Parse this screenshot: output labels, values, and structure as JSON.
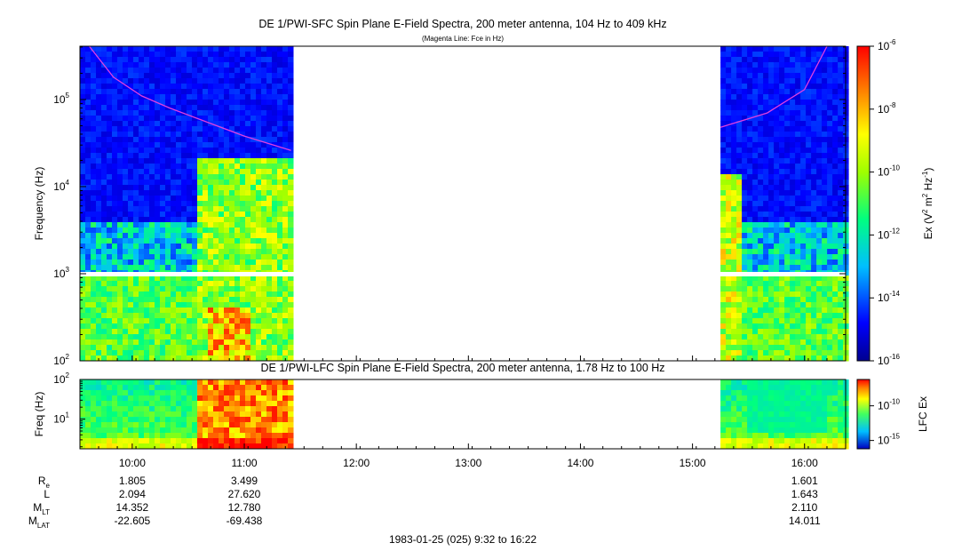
{
  "chart_data": [
    {
      "type": "heatmap",
      "title": "DE 1/PWI-SFC  Spin Plane E-Field Spectra, 200 meter antenna, 104 Hz to 409 kHz",
      "subtitle": "(Magenta Line: Fce in Hz)",
      "ylabel": "Frequency (Hz)",
      "yscale": "log",
      "ylim": [
        100,
        409000
      ],
      "yticks": [
        {
          "value": 100,
          "base": "10",
          "exp": "2"
        },
        {
          "value": 1000,
          "base": "10",
          "exp": "3"
        },
        {
          "value": 10000,
          "base": "10",
          "exp": "4"
        },
        {
          "value": 100000,
          "base": "10",
          "exp": "5"
        }
      ],
      "xlim": [
        "09:32",
        "16:22"
      ],
      "data_intervals": [
        [
          "09:32",
          "11:26"
        ],
        [
          "15:15",
          "16:22"
        ]
      ],
      "colorbar": {
        "label_prefix": "Ex (V",
        "label_sup1": "2",
        "label_mid": " m",
        "label_sup2": "2",
        "label_mid2": " Hz",
        "label_sup3": "-1",
        "label_suffix": ")",
        "scale": "log",
        "range": [
          1e-16,
          1e-06
        ],
        "ticks": [
          {
            "value": 1e-06,
            "base": "10",
            "exp": "-6"
          },
          {
            "value": 1e-08,
            "base": "10",
            "exp": "-8"
          },
          {
            "value": 1e-10,
            "base": "10",
            "exp": "-10"
          },
          {
            "value": 1e-12,
            "base": "10",
            "exp": "-12"
          },
          {
            "value": 1e-14,
            "base": "10",
            "exp": "-14"
          },
          {
            "value": 1e-16,
            "base": "10",
            "exp": "-16"
          }
        ]
      },
      "fce_line": {
        "color": "#e040e0",
        "points": [
          {
            "t": "09:37",
            "f": 409000
          },
          {
            "t": "09:50",
            "f": 180000
          },
          {
            "t": "10:05",
            "f": 110000
          },
          {
            "t": "10:20",
            "f": 80000
          },
          {
            "t": "10:40",
            "f": 55000
          },
          {
            "t": "11:00",
            "f": 38000
          },
          {
            "t": "11:25",
            "f": 26000
          },
          {
            "t": "15:15",
            "f": 48000
          },
          {
            "t": "15:40",
            "f": 70000
          },
          {
            "t": "16:00",
            "f": 130000
          },
          {
            "t": "16:12",
            "f": 409000
          }
        ]
      }
    },
    {
      "type": "heatmap",
      "title": "DE 1/PWI-LFC  Spin Plane E-Field Spectra, 200 meter antenna, 1.78 Hz to 100 Hz",
      "ylabel": "Freq (Hz)",
      "yscale": "log",
      "ylim": [
        1.78,
        100
      ],
      "yticks": [
        {
          "value": 10,
          "base": "10",
          "exp": "1"
        },
        {
          "value": 100,
          "base": "10",
          "exp": "2"
        }
      ],
      "xlim": [
        "09:32",
        "16:22"
      ],
      "data_intervals": [
        [
          "09:32",
          "11:26"
        ],
        [
          "15:15",
          "16:22"
        ]
      ],
      "colorbar": {
        "label": "LFC Ex",
        "scale": "log",
        "ticks": [
          {
            "value": 1e-10,
            "base": "10",
            "exp": "-10"
          },
          {
            "value": 1e-15,
            "base": "10",
            "exp": "-15"
          }
        ]
      }
    }
  ],
  "time_axis": {
    "ticks": [
      {
        "t": "10:00",
        "label": "10:00"
      },
      {
        "t": "11:00",
        "label": "11:00"
      },
      {
        "t": "12:00",
        "label": "12:00"
      },
      {
        "t": "13:00",
        "label": "13:00"
      },
      {
        "t": "14:00",
        "label": "14:00"
      },
      {
        "t": "15:00",
        "label": "15:00"
      },
      {
        "t": "16:00",
        "label": "16:00"
      }
    ]
  },
  "ephemeris": {
    "rows": [
      {
        "label_main": "R",
        "label_sub": "e",
        "values": [
          {
            "t": "10:00",
            "v": "1.805"
          },
          {
            "t": "11:00",
            "v": "3.499"
          },
          {
            "t": "16:00",
            "v": "1.601"
          }
        ]
      },
      {
        "label_main": "L",
        "label_sub": "",
        "values": [
          {
            "t": "10:00",
            "v": "2.094"
          },
          {
            "t": "11:00",
            "v": "27.620"
          },
          {
            "t": "16:00",
            "v": "1.643"
          }
        ]
      },
      {
        "label_main": "M",
        "label_sub": "LT",
        "values": [
          {
            "t": "10:00",
            "v": "14.352"
          },
          {
            "t": "11:00",
            "v": "12.780"
          },
          {
            "t": "16:00",
            "v": "2.110"
          }
        ]
      },
      {
        "label_main": "M",
        "label_sub": "LAT",
        "values": [
          {
            "t": "10:00",
            "v": "-22.605"
          },
          {
            "t": "11:00",
            "v": "-69.438"
          },
          {
            "t": "16:00",
            "v": "14.011"
          }
        ]
      }
    ]
  },
  "footer": "1983-01-25 (025) 9:32 to 16:22"
}
